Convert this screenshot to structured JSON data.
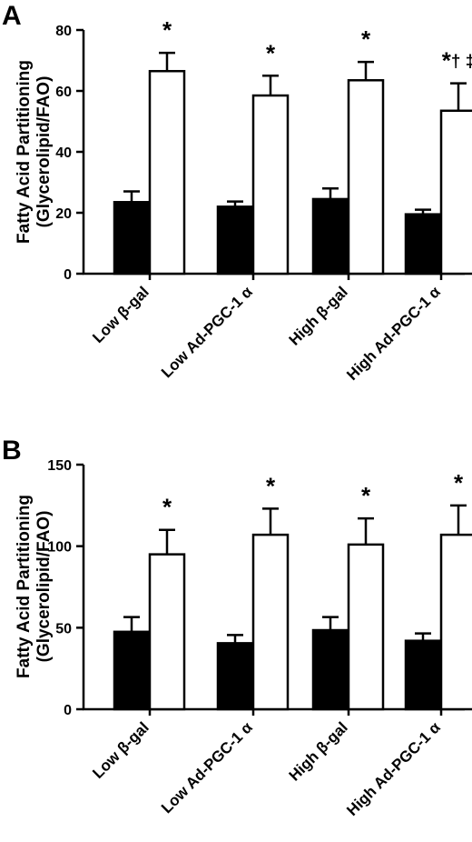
{
  "chart_data": [
    {
      "panel": "A",
      "type": "bar",
      "ylabel_line1": "Fatty Acid Partitioning",
      "ylabel_line2": "(Glycerolipid/FAO)",
      "ylim": [
        0,
        80
      ],
      "yticks": [
        "0",
        "20",
        "40",
        "60",
        "80"
      ],
      "categories": [
        "Low β-gal",
        "Low Ad-PGC-1 α",
        "High β-gal",
        "High Ad-PGC-1 α"
      ],
      "series": [
        {
          "fill": "#000000",
          "values": [
            23.5,
            22,
            24.5,
            19.5
          ],
          "errors": [
            3.5,
            1.7,
            3.5,
            1.5
          ]
        },
        {
          "fill": "#ffffff",
          "values": [
            66.5,
            58.5,
            63.5,
            53.5
          ],
          "errors": [
            6,
            6.5,
            6,
            9
          ]
        }
      ],
      "annotations": [
        "*",
        "*",
        "*",
        "*† ‡"
      ]
    },
    {
      "panel": "B",
      "type": "bar",
      "ylabel_line1": "Fatty Acid Partitioning",
      "ylabel_line2": "(Glycerolipid/FAO)",
      "ylim": [
        0,
        150
      ],
      "yticks": [
        "0",
        "50",
        "100",
        "150"
      ],
      "categories": [
        "Low β-gal",
        "Low Ad-PGC-1 α",
        "High β-gal",
        "High Ad-PGC-1 α"
      ],
      "series": [
        {
          "fill": "#000000",
          "values": [
            47.5,
            40.5,
            48.5,
            42
          ],
          "errors": [
            9,
            5,
            8,
            4.5
          ]
        },
        {
          "fill": "#ffffff",
          "values": [
            95,
            107,
            101,
            107
          ],
          "errors": [
            15,
            16,
            16,
            18
          ]
        }
      ],
      "annotations": [
        "*",
        "*",
        "*",
        "*"
      ]
    }
  ]
}
